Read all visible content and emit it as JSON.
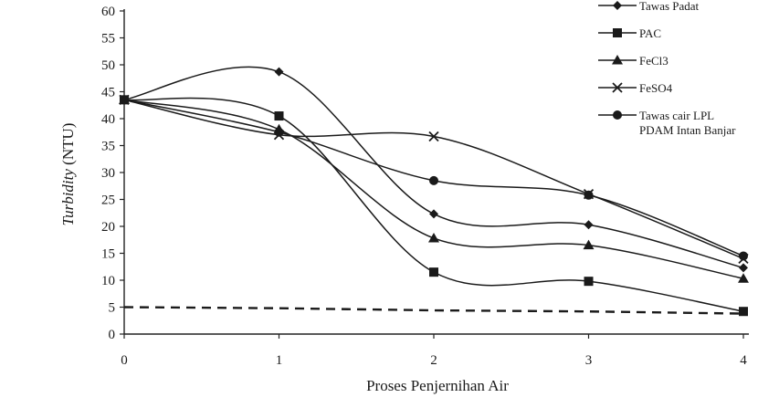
{
  "chart_data": {
    "type": "line",
    "x": [
      0,
      1,
      2,
      3,
      4
    ],
    "xlabel": "Proses Penjernihan Air",
    "ylabel": "Turbidity (NTU)",
    "ylabel_parts": {
      "italic": "Turbidity",
      "plain": " (NTU)"
    },
    "ylim": [
      0,
      60
    ],
    "yticks": [
      0,
      5,
      10,
      15,
      20,
      25,
      30,
      35,
      40,
      45,
      50,
      55,
      60
    ],
    "xticks": [
      0,
      1,
      2,
      3,
      4
    ],
    "grid": false,
    "legend_position": "top-right",
    "series": [
      {
        "name": "Tawas Padat",
        "marker": "diamond",
        "values": [
          43.5,
          48.7,
          22.3,
          20.3,
          12.3
        ]
      },
      {
        "name": "PAC",
        "marker": "square",
        "values": [
          43.5,
          40.5,
          11.5,
          9.8,
          4.2
        ]
      },
      {
        "name": "FeCl3",
        "marker": "triangle",
        "values": [
          43.5,
          38.0,
          17.8,
          16.5,
          10.3
        ]
      },
      {
        "name": "FeSO4",
        "marker": "x",
        "values": [
          43.5,
          37.0,
          36.7,
          26.0,
          14.0
        ]
      },
      {
        "name": "Tawas cair LPL PDAM Intan Banjar",
        "legend_lines": [
          "Tawas cair LPL",
          "PDAM Intan Banjar"
        ],
        "marker": "circle",
        "values": [
          43.5,
          37.5,
          28.5,
          25.8,
          14.5
        ]
      }
    ],
    "reference_line": {
      "values": [
        5.0,
        4.8,
        4.4,
        4.2,
        3.8
      ],
      "style": "dashed"
    }
  }
}
